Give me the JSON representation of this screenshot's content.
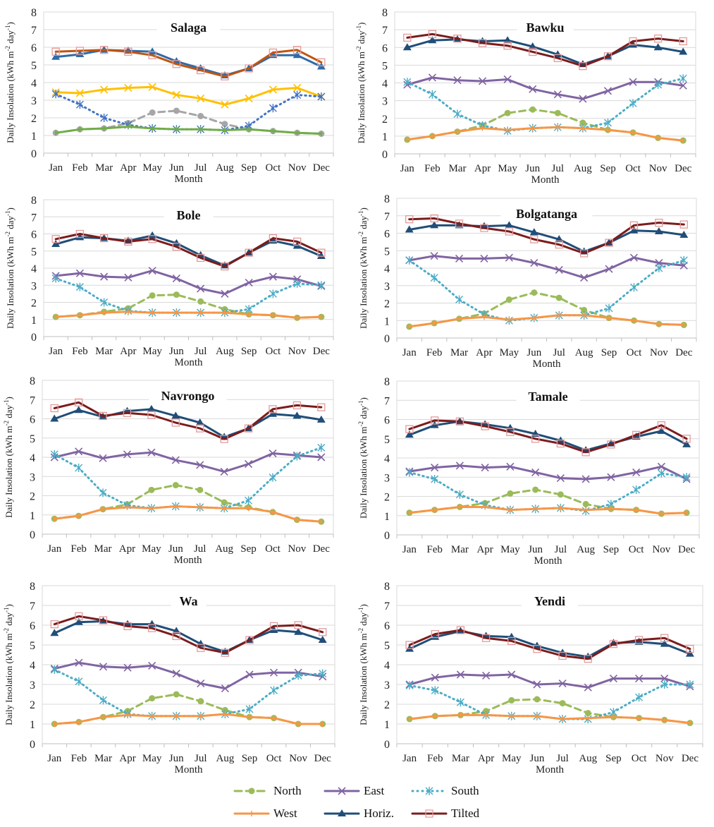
{
  "chart_data": [
    {
      "type": "line",
      "title": "Salaga",
      "xlabel": "Month",
      "ylabel": "Daily Insolation (kWh m-2 day-1)",
      "ylim": [
        0,
        8
      ],
      "grid": true,
      "colors": {
        "North": "#A6A6A6",
        "East": "#FFC000",
        "South": "#4472C4",
        "West": "#70AD47",
        "Horiz.": "#2E6BA8",
        "Tilted": "#C0550F"
      },
      "series": [
        {
          "name": "North",
          "values": [
            1.15,
            1.35,
            1.4,
            1.7,
            2.3,
            2.4,
            2.1,
            1.65,
            1.35,
            1.25,
            1.15,
            1.1
          ]
        },
        {
          "name": "East",
          "values": [
            3.45,
            3.4,
            3.6,
            3.7,
            3.75,
            3.3,
            3.1,
            2.75,
            3.1,
            3.6,
            3.7,
            3.2
          ]
        },
        {
          "name": "South",
          "values": [
            3.35,
            2.75,
            2.0,
            1.6,
            1.4,
            1.35,
            1.35,
            1.3,
            1.55,
            2.55,
            3.3,
            3.2
          ]
        },
        {
          "name": "West",
          "values": [
            1.15,
            1.35,
            1.4,
            1.5,
            1.4,
            1.35,
            1.35,
            1.3,
            1.35,
            1.25,
            1.15,
            1.1
          ]
        },
        {
          "name": "Horiz.",
          "values": [
            5.45,
            5.6,
            5.85,
            5.8,
            5.75,
            5.2,
            4.8,
            4.4,
            4.8,
            5.55,
            5.55,
            4.9
          ]
        },
        {
          "name": "Tilted",
          "values": [
            5.75,
            5.8,
            5.85,
            5.75,
            5.55,
            5.05,
            4.7,
            4.35,
            4.8,
            5.7,
            5.85,
            5.15
          ]
        }
      ]
    },
    {
      "type": "line",
      "title": "Bawku",
      "xlabel": "Month",
      "ylabel": "Daily Insolation (kWh m-2 day-1)",
      "ylim": [
        0,
        8
      ],
      "grid": true,
      "series": [
        {
          "name": "North",
          "values": [
            0.8,
            1.0,
            1.25,
            1.6,
            2.3,
            2.5,
            2.3,
            1.75,
            1.35,
            1.2,
            0.9,
            0.75
          ]
        },
        {
          "name": "East",
          "values": [
            3.9,
            4.3,
            4.15,
            4.1,
            4.2,
            3.65,
            3.35,
            3.1,
            3.55,
            4.05,
            4.05,
            3.85
          ]
        },
        {
          "name": "South",
          "values": [
            4.05,
            3.35,
            2.25,
            1.6,
            1.3,
            1.45,
            1.5,
            1.45,
            1.75,
            2.85,
            3.9,
            4.25
          ]
        },
        {
          "name": "West",
          "values": [
            0.8,
            1.0,
            1.25,
            1.45,
            1.35,
            1.45,
            1.5,
            1.45,
            1.35,
            1.2,
            0.9,
            0.75
          ]
        },
        {
          "name": "Horiz.",
          "values": [
            6.0,
            6.4,
            6.45,
            6.35,
            6.4,
            6.05,
            5.6,
            5.05,
            5.5,
            6.15,
            6.0,
            5.75
          ]
        },
        {
          "name": "Tilted",
          "values": [
            6.55,
            6.75,
            6.5,
            6.25,
            6.1,
            5.75,
            5.4,
            4.95,
            5.5,
            6.35,
            6.5,
            6.35
          ]
        }
      ]
    },
    {
      "type": "line",
      "title": "Bole",
      "xlabel": "Month",
      "ylabel": "Daily Insolation (kWh m-2 day-1)",
      "ylim": [
        0,
        8
      ],
      "grid": true,
      "series": [
        {
          "name": "North",
          "values": [
            1.15,
            1.25,
            1.45,
            1.65,
            2.4,
            2.45,
            2.05,
            1.6,
            1.3,
            1.25,
            1.1,
            1.15
          ]
        },
        {
          "name": "East",
          "values": [
            3.55,
            3.7,
            3.5,
            3.45,
            3.85,
            3.4,
            2.8,
            2.5,
            3.15,
            3.5,
            3.35,
            2.95
          ]
        },
        {
          "name": "South",
          "values": [
            3.4,
            2.9,
            2.0,
            1.5,
            1.4,
            1.4,
            1.4,
            1.4,
            1.6,
            2.5,
            3.1,
            3.0
          ]
        },
        {
          "name": "West",
          "values": [
            1.15,
            1.25,
            1.4,
            1.45,
            1.4,
            1.4,
            1.4,
            1.4,
            1.3,
            1.25,
            1.1,
            1.15
          ]
        },
        {
          "name": "Horiz.",
          "values": [
            5.4,
            5.8,
            5.75,
            5.6,
            5.9,
            5.45,
            4.75,
            4.15,
            4.9,
            5.6,
            5.3,
            4.7
          ]
        },
        {
          "name": "Tilted",
          "values": [
            5.7,
            6.0,
            5.75,
            5.55,
            5.7,
            5.25,
            4.6,
            4.1,
            4.9,
            5.75,
            5.55,
            4.9
          ]
        }
      ]
    },
    {
      "type": "line",
      "title": "Bolgatanga",
      "xlabel": "Month",
      "ylabel": "Daily Insolation (kWh m-2 day-1)",
      "ylim": [
        0,
        8
      ],
      "grid": true,
      "series": [
        {
          "name": "North",
          "values": [
            0.65,
            0.85,
            1.1,
            1.4,
            2.2,
            2.6,
            2.3,
            1.6,
            1.15,
            1.0,
            0.8,
            0.75
          ]
        },
        {
          "name": "East",
          "values": [
            4.45,
            4.7,
            4.55,
            4.55,
            4.6,
            4.3,
            3.9,
            3.45,
            3.95,
            4.6,
            4.3,
            4.15
          ]
        },
        {
          "name": "South",
          "values": [
            4.45,
            3.45,
            2.2,
            1.35,
            1.0,
            1.15,
            1.3,
            1.3,
            1.7,
            2.9,
            4.0,
            4.45
          ]
        },
        {
          "name": "West",
          "values": [
            0.65,
            0.85,
            1.1,
            1.2,
            1.05,
            1.15,
            1.3,
            1.3,
            1.15,
            1.0,
            0.8,
            0.75
          ]
        },
        {
          "name": "Horiz.",
          "values": [
            6.2,
            6.45,
            6.45,
            6.4,
            6.45,
            6.05,
            5.65,
            4.95,
            5.45,
            6.15,
            6.1,
            5.9
          ]
        },
        {
          "name": "Tilted",
          "values": [
            6.8,
            6.85,
            6.55,
            6.3,
            6.1,
            5.65,
            5.35,
            4.85,
            5.45,
            6.45,
            6.6,
            6.5
          ]
        }
      ]
    },
    {
      "type": "line",
      "title": "Navrongo",
      "xlabel": "Month",
      "ylabel": "Daily Insolation (kWh m-2 day-1)",
      "ylim": [
        0,
        8
      ],
      "grid": true,
      "series": [
        {
          "name": "North",
          "values": [
            0.8,
            0.95,
            1.3,
            1.55,
            2.3,
            2.55,
            2.3,
            1.65,
            1.4,
            1.15,
            0.75,
            0.65
          ]
        },
        {
          "name": "East",
          "values": [
            4.0,
            4.3,
            3.95,
            4.15,
            4.25,
            3.85,
            3.6,
            3.25,
            3.65,
            4.2,
            4.1,
            4.0
          ]
        },
        {
          "name": "South",
          "values": [
            4.15,
            3.45,
            2.15,
            1.5,
            1.35,
            1.45,
            1.4,
            1.35,
            1.75,
            2.95,
            4.05,
            4.5
          ]
        },
        {
          "name": "West",
          "values": [
            0.8,
            0.95,
            1.3,
            1.4,
            1.35,
            1.45,
            1.4,
            1.35,
            1.35,
            1.15,
            0.75,
            0.65
          ]
        },
        {
          "name": "Horiz.",
          "values": [
            6.0,
            6.45,
            6.1,
            6.4,
            6.5,
            6.15,
            5.8,
            5.05,
            5.5,
            6.25,
            6.15,
            5.95
          ]
        },
        {
          "name": "Tilted",
          "values": [
            6.55,
            6.85,
            6.15,
            6.3,
            6.2,
            5.8,
            5.5,
            4.95,
            5.5,
            6.5,
            6.7,
            6.6
          ]
        }
      ]
    },
    {
      "type": "line",
      "title": "Tamale",
      "xlabel": "Month",
      "ylabel": "Daily Insolation (kWh m-2 day-1)",
      "ylim": [
        0,
        8
      ],
      "grid": true,
      "series": [
        {
          "name": "North",
          "values": [
            1.15,
            1.3,
            1.45,
            1.65,
            2.15,
            2.35,
            2.1,
            1.6,
            1.35,
            1.3,
            1.1,
            1.15
          ]
        },
        {
          "name": "East",
          "values": [
            3.3,
            3.5,
            3.6,
            3.5,
            3.55,
            3.25,
            2.95,
            2.9,
            3.0,
            3.25,
            3.55,
            2.9
          ]
        },
        {
          "name": "South",
          "values": [
            3.25,
            2.9,
            2.1,
            1.55,
            1.3,
            1.35,
            1.4,
            1.25,
            1.6,
            2.35,
            3.2,
            3.0
          ]
        },
        {
          "name": "West",
          "values": [
            1.15,
            1.3,
            1.45,
            1.45,
            1.3,
            1.35,
            1.4,
            1.3,
            1.35,
            1.3,
            1.1,
            1.15
          ]
        },
        {
          "name": "Horiz.",
          "values": [
            5.2,
            5.7,
            5.9,
            5.75,
            5.55,
            5.25,
            4.9,
            4.4,
            4.75,
            5.1,
            5.4,
            4.7
          ]
        },
        {
          "name": "Tilted",
          "values": [
            5.5,
            5.95,
            5.9,
            5.65,
            5.35,
            5.0,
            4.75,
            4.3,
            4.7,
            5.2,
            5.7,
            5.0
          ]
        }
      ]
    },
    {
      "type": "line",
      "title": "Wa",
      "xlabel": "Month",
      "ylabel": "Daily Insolation (kWh m-2 day-1)",
      "ylim": [
        0,
        8
      ],
      "grid": true,
      "series": [
        {
          "name": "North",
          "values": [
            1.0,
            1.1,
            1.35,
            1.65,
            2.3,
            2.5,
            2.15,
            1.7,
            1.35,
            1.3,
            1.0,
            1.0
          ]
        },
        {
          "name": "East",
          "values": [
            3.8,
            4.1,
            3.9,
            3.85,
            3.95,
            3.55,
            3.05,
            2.8,
            3.5,
            3.6,
            3.6,
            3.4
          ]
        },
        {
          "name": "South",
          "values": [
            3.75,
            3.15,
            2.2,
            1.5,
            1.4,
            1.4,
            1.4,
            1.5,
            1.75,
            2.7,
            3.45,
            3.55
          ]
        },
        {
          "name": "West",
          "values": [
            1.0,
            1.1,
            1.35,
            1.45,
            1.4,
            1.4,
            1.4,
            1.5,
            1.35,
            1.3,
            1.0,
            1.0
          ]
        },
        {
          "name": "Horiz.",
          "values": [
            5.6,
            6.15,
            6.2,
            6.05,
            6.05,
            5.7,
            5.05,
            4.65,
            5.25,
            5.75,
            5.65,
            5.25
          ]
        },
        {
          "name": "Tilted",
          "values": [
            6.05,
            6.45,
            6.25,
            5.95,
            5.85,
            5.45,
            4.85,
            4.6,
            5.25,
            5.95,
            6.0,
            5.65
          ]
        }
      ]
    },
    {
      "type": "line",
      "title": "Yendi",
      "xlabel": "Month",
      "ylabel": "Daily Insolation (kWh m-2 day-1)",
      "ylim": [
        0,
        8
      ],
      "grid": true,
      "series": [
        {
          "name": "North",
          "values": [
            1.25,
            1.4,
            1.45,
            1.65,
            2.2,
            2.25,
            2.05,
            1.55,
            1.35,
            1.3,
            1.2,
            1.05
          ]
        },
        {
          "name": "East",
          "values": [
            3.0,
            3.35,
            3.5,
            3.45,
            3.5,
            3.0,
            3.05,
            2.85,
            3.3,
            3.3,
            3.3,
            2.9
          ]
        },
        {
          "name": "South",
          "values": [
            2.95,
            2.7,
            2.1,
            1.45,
            1.4,
            1.4,
            1.25,
            1.25,
            1.6,
            2.35,
            3.0,
            3.0
          ]
        },
        {
          "name": "West",
          "values": [
            1.25,
            1.4,
            1.45,
            1.45,
            1.4,
            1.4,
            1.25,
            1.3,
            1.35,
            1.3,
            1.2,
            1.05
          ]
        },
        {
          "name": "Horiz.",
          "values": [
            4.8,
            5.4,
            5.7,
            5.45,
            5.4,
            4.95,
            4.6,
            4.4,
            5.1,
            5.15,
            5.05,
            4.55
          ]
        },
        {
          "name": "Tilted",
          "values": [
            5.0,
            5.55,
            5.75,
            5.35,
            5.2,
            4.8,
            4.45,
            4.3,
            5.05,
            5.25,
            5.35,
            4.8
          ]
        }
      ]
    }
  ],
  "categories": [
    "Jan",
    "Feb",
    "Mar",
    "Apr",
    "May",
    "Jun",
    "Jul",
    "Aug",
    "Sep",
    "Oct",
    "Nov",
    "Dec"
  ],
  "yticks": [
    "0",
    "1",
    "2",
    "3",
    "4",
    "5",
    "6",
    "7",
    "8"
  ],
  "ylabel_main": "Daily  Insolation (kWh m",
  "ylabel_sup1": "-2",
  "ylabel_mid": " day",
  "ylabel_sup2": "-1",
  "ylabel_end": ")",
  "legend": {
    "position": "bottom-center",
    "items": [
      {
        "label": "North",
        "color": "#9BBB59",
        "marker": "circle",
        "dash": "dashed"
      },
      {
        "label": "East",
        "color": "#8064A2",
        "marker": "x",
        "dash": "solid"
      },
      {
        "label": "South",
        "color": "#4BACC6",
        "marker": "asterisk",
        "dash": "dotted"
      },
      {
        "label": "West",
        "color": "#F79646",
        "marker": "plus",
        "dash": "solid"
      },
      {
        "label": "Horiz.",
        "color": "#1F4E79",
        "marker": "triangle",
        "dash": "solid"
      },
      {
        "label": "Tilted",
        "color": "#7B1C1C",
        "marker": "square",
        "dash": "solid"
      }
    ]
  }
}
